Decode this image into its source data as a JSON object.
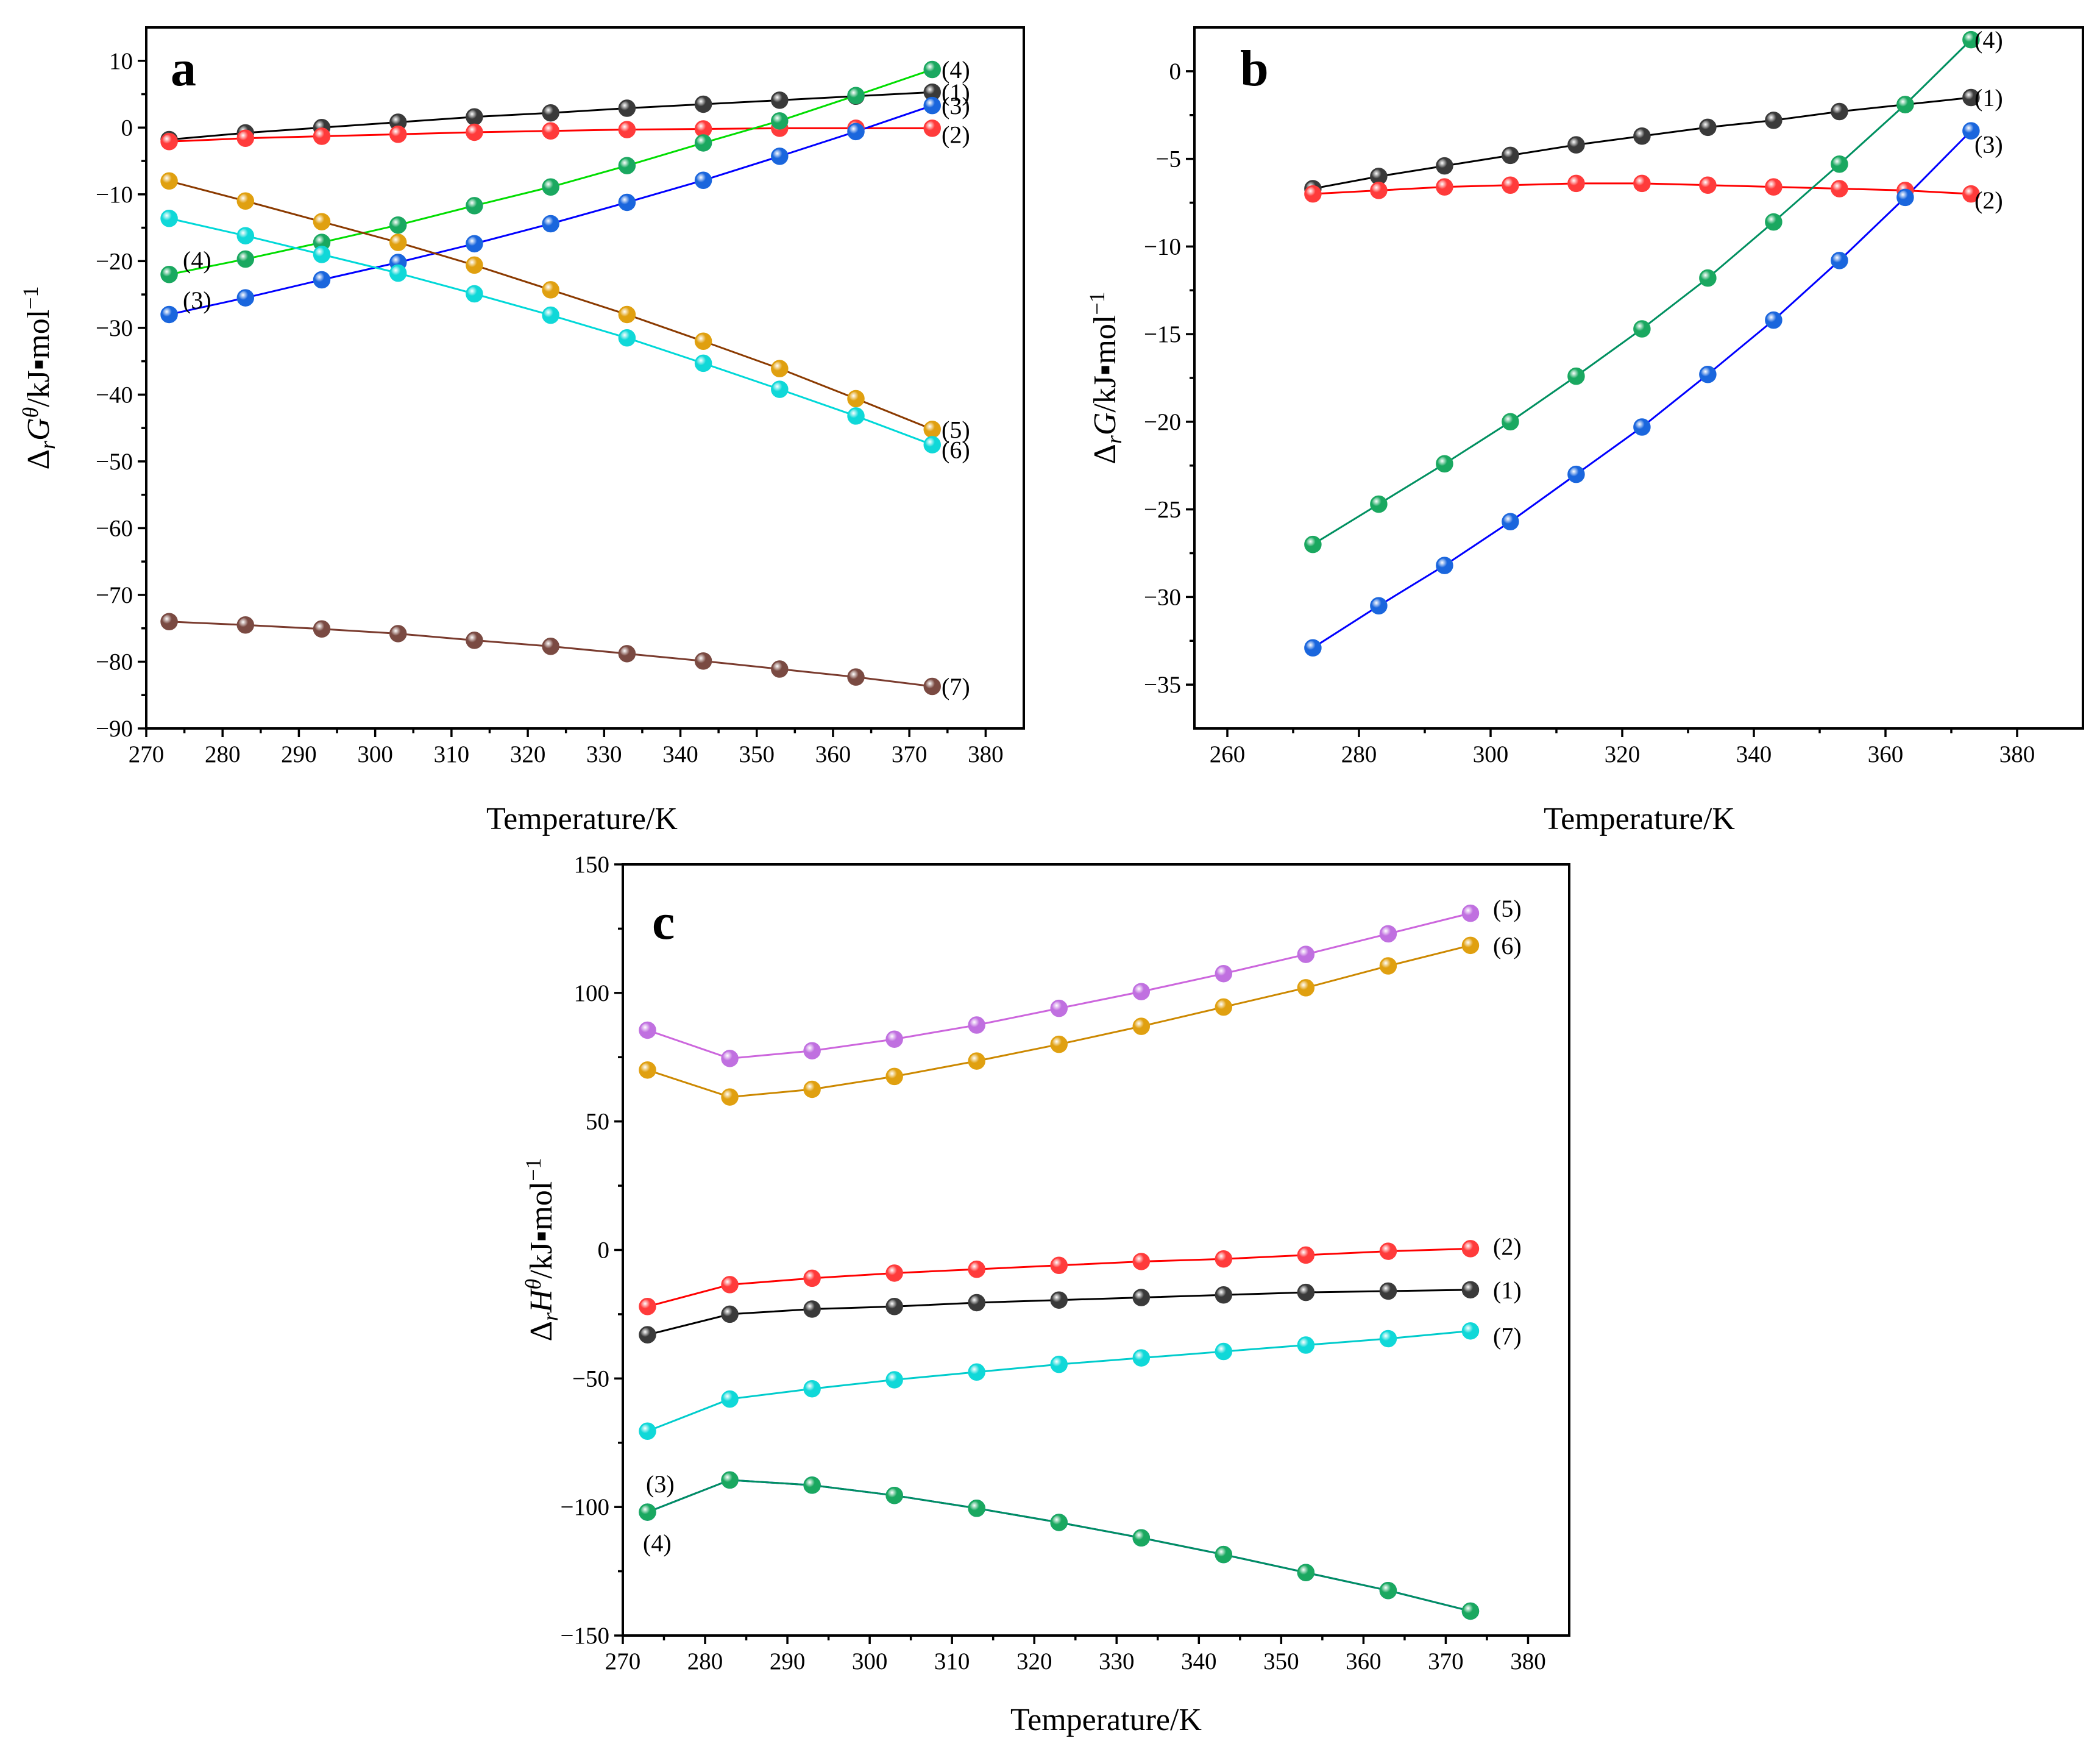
{
  "chart_data": [
    {
      "panel": "a",
      "type": "line",
      "xlabel": "Temperature/K",
      "ylabel": "ΔrGθ/kJ▪mol−1",
      "ylabel_parts": {
        "delta": "Δ",
        "sub": "r",
        "sym": "G",
        "sup": "θ",
        "unit": "/kJ▪mol",
        "exp": "−1"
      },
      "xlim": [
        270,
        385
      ],
      "ylim": [
        -90,
        15
      ],
      "xticks": [
        270,
        280,
        290,
        300,
        310,
        320,
        330,
        340,
        350,
        360,
        370,
        380
      ],
      "yticks": [
        10,
        0,
        -10,
        -20,
        -30,
        -40,
        -50,
        -60,
        -70,
        -80,
        -90
      ],
      "ytick_labels": [
        "10",
        "0",
        "−10",
        "−20",
        "−30",
        "−40",
        "−50",
        "−60",
        "−70",
        "−80",
        "−90"
      ],
      "x": [
        273,
        283,
        293,
        303,
        313,
        323,
        333,
        343,
        353,
        363,
        373
      ],
      "series": [
        {
          "name": "(1)",
          "line_color": "#000000",
          "fill": "#3a3a3a",
          "values": [
            -1.8,
            -0.8,
            0.0,
            0.8,
            1.6,
            2.2,
            2.9,
            3.5,
            4.1,
            4.7,
            5.3
          ]
        },
        {
          "name": "(2)",
          "line_color": "#ff0000",
          "fill": "#ff3b3b",
          "values": [
            -2.1,
            -1.6,
            -1.3,
            -1.0,
            -0.7,
            -0.5,
            -0.3,
            -0.2,
            -0.1,
            -0.1,
            -0.1
          ]
        },
        {
          "name": "(3)",
          "line_color": "#0000ff",
          "fill": "#1a66dd",
          "values": [
            -28.0,
            -25.5,
            -22.8,
            -20.2,
            -17.4,
            -14.4,
            -11.2,
            -7.9,
            -4.3,
            -0.6,
            3.3
          ]
        },
        {
          "name": "(4)",
          "line_color": "#00dd00",
          "fill": "#1aa860",
          "values": [
            -22.0,
            -19.7,
            -17.2,
            -14.6,
            -11.7,
            -8.9,
            -5.7,
            -2.3,
            1.0,
            4.8,
            8.7
          ]
        },
        {
          "name": "(5)",
          "line_color": "#8b3a00",
          "fill": "#e0a010",
          "values": [
            -8.0,
            -11.0,
            -14.1,
            -17.2,
            -20.6,
            -24.3,
            -28.0,
            -32.0,
            -36.1,
            -40.6,
            -45.2
          ]
        },
        {
          "name": "(6)",
          "line_color": "#00d8d8",
          "fill": "#10d8d8",
          "values": [
            -13.6,
            -16.2,
            -19.0,
            -21.8,
            -24.9,
            -28.1,
            -31.5,
            -35.3,
            -39.2,
            -43.2,
            -47.5
          ]
        },
        {
          "name": "(7)",
          "line_color": "#7a3b2e",
          "fill": "#7a4a42",
          "values": [
            -74.0,
            -74.5,
            -75.1,
            -75.8,
            -76.8,
            -77.7,
            -78.8,
            -79.9,
            -81.1,
            -82.3,
            -83.7
          ]
        }
      ]
    },
    {
      "panel": "b",
      "type": "line",
      "xlabel": "Temperature/K",
      "ylabel": "ΔrG/kJ▪mol−1",
      "ylabel_parts": {
        "delta": "Δ",
        "sub": "r",
        "sym": "G",
        "sup": "",
        "unit": "/kJ▪mol",
        "exp": "−1"
      },
      "xlim": [
        255,
        390
      ],
      "ylim": [
        -37.5,
        2.5
      ],
      "xticks": [
        260,
        280,
        300,
        320,
        340,
        360,
        380
      ],
      "yticks": [
        0,
        -5,
        -10,
        -15,
        -20,
        -25,
        -30,
        -35
      ],
      "ytick_labels": [
        "0",
        "−5",
        "−10",
        "−15",
        "−20",
        "−25",
        "−30",
        "−35"
      ],
      "x": [
        273,
        283,
        293,
        303,
        313,
        323,
        333,
        343,
        353,
        363,
        373
      ],
      "series": [
        {
          "name": "(1)",
          "line_color": "#000000",
          "fill": "#3a3a3a",
          "values": [
            -6.7,
            -6.0,
            -5.4,
            -4.8,
            -4.2,
            -3.7,
            -3.2,
            -2.8,
            -2.3,
            -1.9,
            -1.5
          ]
        },
        {
          "name": "(2)",
          "line_color": "#ff0000",
          "fill": "#ff3b3b",
          "values": [
            -7.0,
            -6.8,
            -6.6,
            -6.5,
            -6.4,
            -6.4,
            -6.5,
            -6.6,
            -6.7,
            -6.8,
            -7.0
          ]
        },
        {
          "name": "(3)",
          "line_color": "#0000ff",
          "fill": "#1a66dd",
          "values": [
            -32.9,
            -30.5,
            -28.2,
            -25.7,
            -23.0,
            -20.3,
            -17.3,
            -14.2,
            -10.8,
            -7.2,
            -3.4
          ]
        },
        {
          "name": "(4)",
          "line_color": "#009060",
          "fill": "#1aa860",
          "values": [
            -27.0,
            -24.7,
            -22.4,
            -20.0,
            -17.4,
            -14.7,
            -11.8,
            -8.6,
            -5.3,
            -1.9,
            1.8
          ]
        }
      ]
    },
    {
      "panel": "c",
      "type": "line",
      "xlabel": "Temperature/K",
      "ylabel": "ΔrHθ/kJ▪mol−1",
      "ylabel_parts": {
        "delta": "Δ",
        "sub": "r",
        "sym": "H",
        "sup": "θ",
        "unit": "/kJ▪mol",
        "exp": "−1"
      },
      "xlim": [
        270,
        385
      ],
      "ylim": [
        -150,
        150
      ],
      "xticks": [
        270,
        280,
        290,
        300,
        310,
        320,
        330,
        340,
        350,
        360,
        370,
        380
      ],
      "yticks": [
        150,
        100,
        50,
        0,
        -50,
        -100,
        -150
      ],
      "ytick_labels": [
        "150",
        "100",
        "50",
        "0",
        "−50",
        "−100",
        "−150"
      ],
      "x": [
        273,
        283,
        293,
        303,
        313,
        323,
        333,
        343,
        353,
        363,
        373
      ],
      "series": [
        {
          "name": "(1)",
          "line_color": "#000000",
          "fill": "#3a3a3a",
          "values": [
            -33.0,
            -25.0,
            -23.0,
            -22.0,
            -20.5,
            -19.5,
            -18.5,
            -17.5,
            -16.5,
            -16.0,
            -15.5
          ]
        },
        {
          "name": "(2)",
          "line_color": "#ff0000",
          "fill": "#ff3b3b",
          "values": [
            -22.0,
            -13.5,
            -11.0,
            -9.0,
            -7.5,
            -6.0,
            -4.5,
            -3.5,
            -2.0,
            -0.5,
            0.5
          ]
        },
        {
          "name": "(3)",
          "line_color": "#0000ff",
          "fill": "#1a66dd",
          "values": [
            -102.0,
            -89.5,
            -91.5,
            -95.5,
            -100.5,
            -106.0,
            -112.0,
            -118.5,
            -125.5,
            -132.5,
            -140.5
          ]
        },
        {
          "name": "(4)",
          "line_color": "#009060",
          "fill": "#1aa860",
          "values": [
            -102.0,
            -89.5,
            -91.5,
            -95.5,
            -100.5,
            -106.0,
            -112.0,
            -118.5,
            -125.5,
            -132.5,
            -140.5
          ]
        },
        {
          "name": "(5)",
          "line_color": "#cc66dd",
          "fill": "#c070e0",
          "values": [
            85.5,
            74.5,
            77.5,
            82.0,
            87.5,
            94.0,
            100.5,
            107.5,
            115.0,
            123.0,
            131.0
          ]
        },
        {
          "name": "(6)",
          "line_color": "#cc8800",
          "fill": "#e0a010",
          "values": [
            70.0,
            59.5,
            62.5,
            67.5,
            73.5,
            80.0,
            87.0,
            94.5,
            102.0,
            110.5,
            118.5
          ]
        },
        {
          "name": "(7)",
          "line_color": "#00cccc",
          "fill": "#10d8d8",
          "values": [
            -70.5,
            -58.0,
            -54.0,
            -50.5,
            -47.5,
            -44.5,
            -42.0,
            -39.5,
            -37.0,
            -34.5,
            -31.5
          ]
        }
      ]
    }
  ]
}
